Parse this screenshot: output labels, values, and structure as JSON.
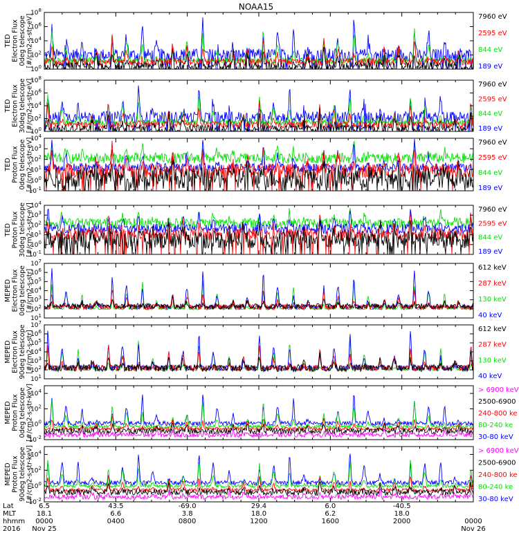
{
  "title": "NOAA15",
  "colors": {
    "black": "#000000",
    "red": "#ff0000",
    "green": "#00e000",
    "blue": "#0000ff",
    "magenta": "#ff00ff"
  },
  "chart_data": [
    {
      "type": "line",
      "ylabel": [
        "TED",
        "Electron Flux",
        "0deg telescope",
        "[#/cm2-s-str-eV]"
      ],
      "ylim_exp": [
        0,
        8
      ],
      "y_ticks": [
        "10^0",
        "10^2",
        "10^4",
        "10^6",
        "10^8"
      ],
      "legend": [
        {
          "label": "7960 eV",
          "color": "#000000"
        },
        {
          "label": "2595 eV",
          "color": "#ff0000"
        },
        {
          "label": "844 eV",
          "color": "#00e000"
        },
        {
          "label": "189 eV",
          "color": "#0000ff"
        }
      ],
      "series": [
        {
          "color": "#0000ff",
          "base_exp": 2.0,
          "noise_exp": 0.9,
          "peak_exp": 6.8
        },
        {
          "color": "#00e000",
          "base_exp": 1.2,
          "noise_exp": 0.4,
          "peak_exp": 5.8
        },
        {
          "color": "#ff0000",
          "base_exp": 1.0,
          "noise_exp": 0.5,
          "peak_exp": 4.5
        },
        {
          "color": "#000000",
          "base_exp": 0.4,
          "noise_exp": 0.6,
          "peak_exp": 3.2
        }
      ]
    },
    {
      "type": "line",
      "ylabel": [
        "TED",
        "Electron Flux",
        "30deg telescope",
        "[#/cm2-s-str-eV]"
      ],
      "ylim_exp": [
        0,
        8
      ],
      "y_ticks": [
        "10^0",
        "10^2",
        "10^4",
        "10^6",
        "10^8"
      ],
      "legend": [
        {
          "label": "7960 eV",
          "color": "#000000"
        },
        {
          "label": "2595 eV",
          "color": "#ff0000"
        },
        {
          "label": "844 eV",
          "color": "#00e000"
        },
        {
          "label": "189 eV",
          "color": "#0000ff"
        }
      ],
      "series": [
        {
          "color": "#0000ff",
          "base_exp": 2.2,
          "noise_exp": 0.9,
          "peak_exp": 6.8
        },
        {
          "color": "#00e000",
          "base_exp": 1.4,
          "noise_exp": 0.4,
          "peak_exp": 5.8
        },
        {
          "color": "#ff0000",
          "base_exp": 1.0,
          "noise_exp": 0.5,
          "peak_exp": 4.5
        },
        {
          "color": "#000000",
          "base_exp": 0.4,
          "noise_exp": 0.6,
          "peak_exp": 3.2
        }
      ]
    },
    {
      "type": "line",
      "ylabel": [
        "TED",
        "Proton Flux",
        "0deg telescope",
        "[#/cm2-s-str-eV]"
      ],
      "ylim_exp": [
        -1,
        4
      ],
      "y_ticks": [
        "10^-1",
        "10^0",
        "10^1",
        "10^2",
        "10^3",
        "10^4"
      ],
      "legend": [
        {
          "label": "7960 eV",
          "color": "#000000"
        },
        {
          "label": "2595 eV",
          "color": "#ff0000"
        },
        {
          "label": "844 eV",
          "color": "#00e000"
        },
        {
          "label": "189 eV",
          "color": "#0000ff"
        }
      ],
      "series": [
        {
          "color": "#00e000",
          "base_exp": 2.1,
          "noise_exp": 0.5,
          "peak_exp": 3.3
        },
        {
          "color": "#0000ff",
          "base_exp": 1.2,
          "noise_exp": 0.4,
          "peak_exp": 3.8
        },
        {
          "color": "#ff0000",
          "base_exp": 0.9,
          "noise_exp": 0.7,
          "peak_exp": 3.2
        },
        {
          "color": "#000000",
          "base_exp": 0.2,
          "noise_exp": 1.0,
          "peak_exp": 2.0
        }
      ]
    },
    {
      "type": "line",
      "ylabel": [
        "TED",
        "Proton Flux",
        "30deg telescope",
        "[#/cm2-s-str-eV]"
      ],
      "ylim_exp": [
        -1,
        4
      ],
      "y_ticks": [
        "10^-1",
        "10^0",
        "10^1",
        "10^2",
        "10^3",
        "10^4"
      ],
      "legend": [
        {
          "label": "7960 eV",
          "color": "#000000"
        },
        {
          "label": "2595 eV",
          "color": "#ff0000"
        },
        {
          "label": "844 eV",
          "color": "#00e000"
        },
        {
          "label": "189 eV",
          "color": "#0000ff"
        }
      ],
      "series": [
        {
          "color": "#00e000",
          "base_exp": 2.2,
          "noise_exp": 0.5,
          "peak_exp": 3.5
        },
        {
          "color": "#0000ff",
          "base_exp": 1.6,
          "noise_exp": 0.5,
          "peak_exp": 3.6
        },
        {
          "color": "#ff0000",
          "base_exp": 1.0,
          "noise_exp": 0.6,
          "peak_exp": 3.0
        },
        {
          "color": "#000000",
          "base_exp": 0.5,
          "noise_exp": 0.9,
          "peak_exp": 2.5
        }
      ]
    },
    {
      "type": "line",
      "ylabel": [
        "MEPED",
        "Electron Flux",
        "0deg telescope",
        "[#/cm2-s-str]"
      ],
      "ylim_exp": [
        1,
        7
      ],
      "y_ticks": [
        "10^1",
        "10^2",
        "10^3",
        "10^4",
        "10^5",
        "10^6",
        "10^7"
      ],
      "legend": [
        {
          "label": "612 keV",
          "color": "#000000"
        },
        {
          "label": "287 keV",
          "color": "#ff0000"
        },
        {
          "label": "130 keV",
          "color": "#00e000"
        },
        {
          "label": "40 keV",
          "color": "#0000ff"
        }
      ],
      "series": [
        {
          "color": "#00e000",
          "base_exp": 2.0,
          "noise_exp": 0.1,
          "peak_exp": 5.2
        },
        {
          "color": "#0000ff",
          "base_exp": 2.2,
          "noise_exp": 0.2,
          "peak_exp": 6.3
        },
        {
          "color": "#ff0000",
          "base_exp": 2.2,
          "noise_exp": 0.3,
          "peak_exp": 4.2
        },
        {
          "color": "#000000",
          "base_exp": 2.3,
          "noise_exp": 0.3,
          "peak_exp": 3.2
        }
      ]
    },
    {
      "type": "line",
      "ylabel": [
        "MEPED",
        "Electron Flux",
        "90deg telescope",
        "[#/cm2-s-str]"
      ],
      "ylim_exp": [
        1,
        7
      ],
      "y_ticks": [
        "10^1",
        "10^2",
        "10^3",
        "10^4",
        "10^5",
        "10^6",
        "10^7"
      ],
      "legend": [
        {
          "label": "612 keV",
          "color": "#000000"
        },
        {
          "label": "287 keV",
          "color": "#ff0000"
        },
        {
          "label": "130 keV",
          "color": "#00e000"
        },
        {
          "label": "40 keV",
          "color": "#0000ff"
        }
      ],
      "series": [
        {
          "color": "#00e000",
          "base_exp": 2.0,
          "noise_exp": 0.1,
          "peak_exp": 5.4
        },
        {
          "color": "#0000ff",
          "base_exp": 2.2,
          "noise_exp": 0.3,
          "peak_exp": 6.3
        },
        {
          "color": "#ff0000",
          "base_exp": 2.2,
          "noise_exp": 0.3,
          "peak_exp": 4.8
        },
        {
          "color": "#000000",
          "base_exp": 2.2,
          "noise_exp": 0.4,
          "peak_exp": 3.8
        }
      ]
    },
    {
      "type": "line",
      "ylabel": [
        "MEPED",
        "Proton Flux",
        "0deg telescope",
        "[#/cm2-s-str-keV]"
      ],
      "ylim_exp": [
        -2,
        5
      ],
      "y_ticks": [
        "10^-2",
        "10^0",
        "10^2",
        "10^4"
      ],
      "legend": [
        {
          "label": "> 6900 keV",
          "color": "#ff00ff"
        },
        {
          "label": "2500-6900",
          "color": "#000000"
        },
        {
          "label": "240-800 ke",
          "color": "#ff0000"
        },
        {
          "label": "80-240 ke",
          "color": "#00e000"
        },
        {
          "label": "30-80 keV",
          "color": "#0000ff"
        }
      ],
      "series": [
        {
          "color": "#0000ff",
          "base_exp": 0.1,
          "noise_exp": 0.3,
          "peak_exp": 4.0
        },
        {
          "color": "#00e000",
          "base_exp": -0.3,
          "noise_exp": 0.2,
          "peak_exp": 3.0
        },
        {
          "color": "#ff0000",
          "base_exp": -0.6,
          "noise_exp": 0.2,
          "peak_exp": 1.0
        },
        {
          "color": "#000000",
          "base_exp": -0.9,
          "noise_exp": 0.4,
          "peak_exp": 0.2
        },
        {
          "color": "#ff00ff",
          "base_exp": -1.4,
          "noise_exp": 0.3,
          "peak_exp": -0.7
        }
      ]
    },
    {
      "type": "line",
      "ylabel": [
        "MEPED",
        "Proton Flux",
        "90deg telescope",
        "[#/cm2-s-str-keV]"
      ],
      "ylim_exp": [
        -2,
        5
      ],
      "y_ticks": [
        "10^-2",
        "10^0",
        "10^2",
        "10^4"
      ],
      "legend": [
        {
          "label": "> 6900 keV",
          "color": "#ff00ff"
        },
        {
          "label": "2500-6900",
          "color": "#000000"
        },
        {
          "label": "240-800 ke",
          "color": "#ff0000"
        },
        {
          "label": "80-240 ke",
          "color": "#00e000"
        },
        {
          "label": "30-80 keV",
          "color": "#0000ff"
        }
      ],
      "series": [
        {
          "color": "#0000ff",
          "base_exp": 0.4,
          "noise_exp": 0.3,
          "peak_exp": 4.4
        },
        {
          "color": "#00e000",
          "base_exp": 0.0,
          "noise_exp": 0.2,
          "peak_exp": 3.4
        },
        {
          "color": "#ff0000",
          "base_exp": -0.5,
          "noise_exp": 0.2,
          "peak_exp": 1.4
        },
        {
          "color": "#000000",
          "base_exp": -0.8,
          "noise_exp": 0.4,
          "peak_exp": 0.4
        },
        {
          "color": "#ff00ff",
          "base_exp": -1.4,
          "noise_exp": 0.3,
          "peak_exp": -0.6
        }
      ]
    }
  ],
  "x_axis": {
    "row_labels": [
      "Lat",
      "MLT",
      "hhmm",
      "2016"
    ],
    "ticks": [
      {
        "frac": 0.0,
        "lat": "6.5",
        "mlt": "18.1",
        "hhmm": "0000",
        "date": "Nov 25"
      },
      {
        "frac": 0.1667,
        "lat": "43.5",
        "mlt": "6.6",
        "hhmm": "0400",
        "date": ""
      },
      {
        "frac": 0.3333,
        "lat": "-69.0",
        "mlt": "3.8",
        "hhmm": "0800",
        "date": ""
      },
      {
        "frac": 0.5,
        "lat": "29.4",
        "mlt": "18.0",
        "hhmm": "1200",
        "date": ""
      },
      {
        "frac": 0.6667,
        "lat": "6.0",
        "mlt": "6.2",
        "hhmm": "1600",
        "date": ""
      },
      {
        "frac": 0.8333,
        "lat": "-40.5",
        "mlt": "18.0",
        "hhmm": "2000",
        "date": ""
      },
      {
        "frac": 1.0,
        "lat": "",
        "mlt": "",
        "hhmm": "0000",
        "date": "Nov 26"
      }
    ],
    "passes_per_day": 14.2
  }
}
